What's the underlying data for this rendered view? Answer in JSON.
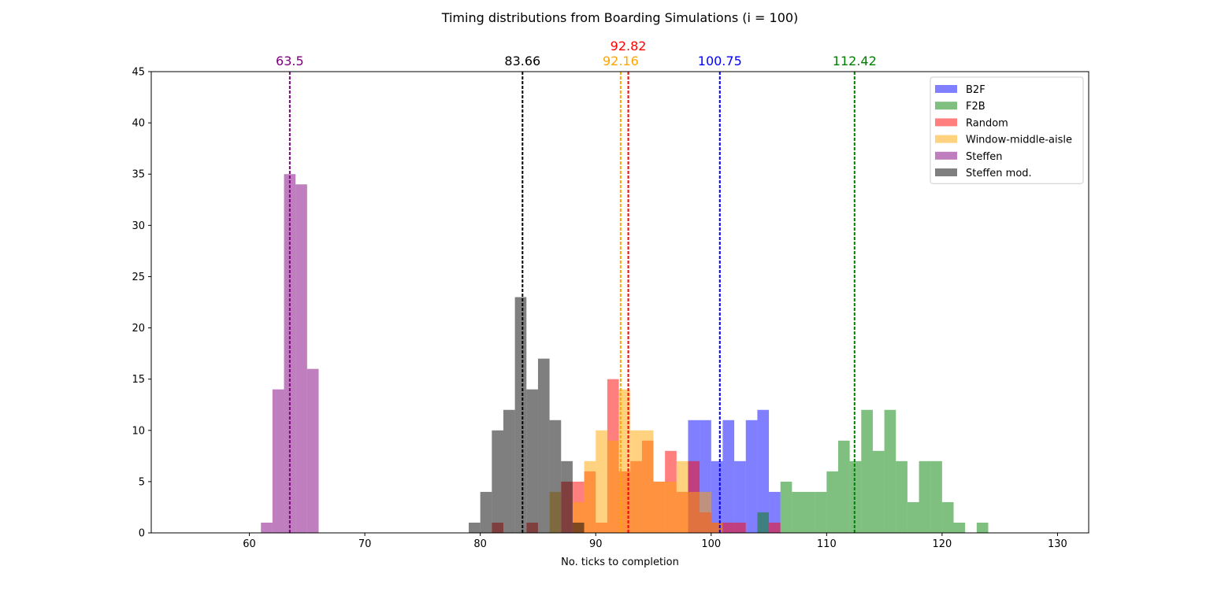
{
  "chart_data": {
    "type": "histogram",
    "title": "Timing distributions from Boarding Simulations (i = 100)",
    "xlabel": "No. ticks to completion",
    "ylabel": "",
    "xlim": [
      51.5,
      132.7
    ],
    "ylim": [
      0,
      45
    ],
    "xticks": [
      60,
      70,
      80,
      90,
      100,
      110,
      120,
      130
    ],
    "yticks": [
      0,
      5,
      10,
      15,
      20,
      25,
      30,
      35,
      40,
      45
    ],
    "grid": false,
    "legend_position": "upper right",
    "bin_width": 1,
    "series": [
      {
        "name": "B2F",
        "color": "#0000ff",
        "bins": [
          [
            98,
            11
          ],
          [
            99,
            11
          ],
          [
            100,
            7
          ],
          [
            101,
            11
          ],
          [
            102,
            7
          ],
          [
            103,
            11
          ],
          [
            104,
            12
          ],
          [
            105,
            4
          ]
        ],
        "mean": 100.75,
        "mean_label": "100.75"
      },
      {
        "name": "F2B",
        "color": "#008000",
        "bins": [
          [
            104,
            2
          ],
          [
            106,
            5
          ],
          [
            107,
            4
          ],
          [
            108,
            4
          ],
          [
            109,
            4
          ],
          [
            110,
            6
          ],
          [
            111,
            9
          ],
          [
            112,
            7
          ],
          [
            113,
            12
          ],
          [
            114,
            8
          ],
          [
            115,
            12
          ],
          [
            116,
            7
          ],
          [
            117,
            3
          ],
          [
            118,
            7
          ],
          [
            119,
            7
          ],
          [
            120,
            3
          ],
          [
            121,
            1
          ],
          [
            123,
            1
          ]
        ],
        "mean": 112.42,
        "mean_label": "112.42"
      },
      {
        "name": "Random",
        "color": "#ff0000",
        "bins": [
          [
            81,
            1
          ],
          [
            84,
            1
          ],
          [
            87,
            5
          ],
          [
            88,
            5
          ],
          [
            89,
            6
          ],
          [
            90,
            1
          ],
          [
            91,
            15
          ],
          [
            92,
            6
          ],
          [
            93,
            7
          ],
          [
            94,
            9
          ],
          [
            95,
            5
          ],
          [
            96,
            8
          ],
          [
            97,
            4
          ],
          [
            98,
            7
          ],
          [
            99,
            2
          ],
          [
            100,
            1
          ],
          [
            101,
            1
          ],
          [
            102,
            1
          ],
          [
            105,
            1
          ]
        ],
        "mean": 92.82,
        "mean_label": "92.82"
      },
      {
        "name": "Window-middle-aisle",
        "color": "#ffa500",
        "bins": [
          [
            86,
            4
          ],
          [
            88,
            3
          ],
          [
            89,
            7
          ],
          [
            90,
            10
          ],
          [
            91,
            9
          ],
          [
            92,
            14
          ],
          [
            93,
            10
          ],
          [
            94,
            10
          ],
          [
            95,
            5
          ],
          [
            96,
            5
          ],
          [
            97,
            7
          ],
          [
            98,
            4
          ],
          [
            99,
            4
          ],
          [
            100,
            1
          ]
        ],
        "mean": 92.16,
        "mean_label": "92.16"
      },
      {
        "name": "Steffen",
        "color": "#800080",
        "bins": [
          [
            61,
            1
          ],
          [
            62,
            14
          ],
          [
            63,
            35
          ],
          [
            64,
            34
          ],
          [
            65,
            16
          ]
        ],
        "mean": 63.5,
        "mean_label": "63.5"
      },
      {
        "name": "Steffen mod.",
        "color": "#000000",
        "bins": [
          [
            79,
            1
          ],
          [
            80,
            4
          ],
          [
            81,
            10
          ],
          [
            82,
            12
          ],
          [
            83,
            23
          ],
          [
            84,
            14
          ],
          [
            85,
            17
          ],
          [
            86,
            11
          ],
          [
            87,
            7
          ],
          [
            88,
            1
          ]
        ],
        "mean": 83.66,
        "mean_label": "83.66"
      }
    ]
  }
}
